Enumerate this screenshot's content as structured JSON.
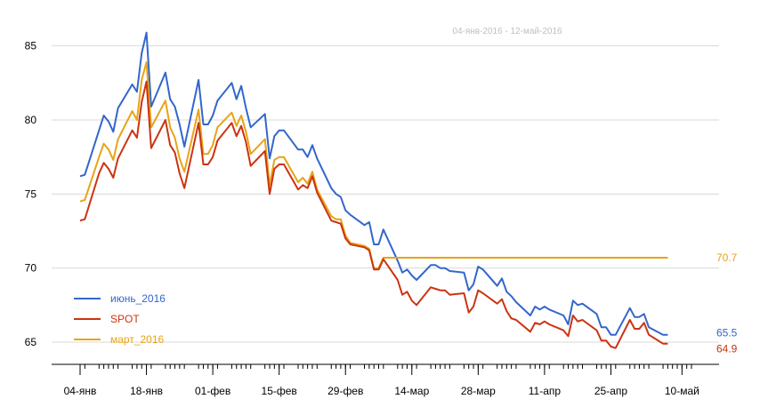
{
  "chart_data": {
    "type": "line",
    "subtitle": "04-янв-2016 - 12-май-2016",
    "ylim": [
      63.5,
      87.5
    ],
    "y_ticks": [
      65,
      70,
      75,
      80,
      85
    ],
    "grid": "horizontal",
    "legend_position": "bottom-left",
    "x_ticks": [
      {
        "label": "04-янв",
        "day": 0
      },
      {
        "label": "18-янв",
        "day": 14
      },
      {
        "label": "01-фев",
        "day": 28
      },
      {
        "label": "15-фев",
        "day": 42
      },
      {
        "label": "29-фев",
        "day": 56
      },
      {
        "label": "14-мар",
        "day": 70
      },
      {
        "label": "28-мар",
        "day": 84
      },
      {
        "label": "11-апр",
        "day": 98
      },
      {
        "label": "25-апр",
        "day": 112
      },
      {
        "label": "10-май",
        "day": 127
      }
    ],
    "x_days": [
      0,
      1,
      4,
      5,
      6,
      7,
      8,
      11,
      12,
      13,
      14,
      15,
      18,
      19,
      20,
      21,
      22,
      25,
      26,
      27,
      28,
      29,
      32,
      33,
      34,
      35,
      36,
      39,
      40,
      41,
      42,
      43,
      46,
      47,
      48,
      49,
      50,
      53,
      54,
      55,
      56,
      57,
      60,
      61,
      62,
      63,
      64,
      67,
      68,
      69,
      70,
      71,
      74,
      75,
      76,
      77,
      78,
      81,
      82,
      83,
      84,
      85,
      88,
      89,
      90,
      91,
      92,
      95,
      96,
      97,
      98,
      99,
      102,
      103,
      104,
      105,
      106,
      109,
      110,
      111,
      112,
      113,
      116,
      117,
      118,
      119,
      120,
      123,
      124,
      125,
      126,
      127,
      128,
      129
    ],
    "series": [
      {
        "name": "июнь_2016",
        "color": "#3366cc",
        "end_label": "65.5",
        "values": [
          76.2,
          76.3,
          79.3,
          80.3,
          79.9,
          79.2,
          80.8,
          82.4,
          81.9,
          84.5,
          85.9,
          80.9,
          83.2,
          81.4,
          80.9,
          79.7,
          78.2,
          82.7,
          79.7,
          79.7,
          80.3,
          81.3,
          82.5,
          81.4,
          82.3,
          80.8,
          79.5,
          80.4,
          77.4,
          78.9,
          79.3,
          79.3,
          78.0,
          78.0,
          77.5,
          78.3,
          77.4,
          75.4,
          75.0,
          74.8,
          73.9,
          73.6,
          72.9,
          73.1,
          71.6,
          71.6,
          72.6,
          70.5,
          69.7,
          69.9,
          69.5,
          69.2,
          70.2,
          70.2,
          70.0,
          70.0,
          69.8,
          69.7,
          68.5,
          68.9,
          70.1,
          69.9,
          68.8,
          69.3,
          68.4,
          68.1,
          67.7,
          66.8,
          67.4,
          67.2,
          67.4,
          67.2,
          66.8,
          66.2,
          67.8,
          67.5,
          67.6,
          66.9,
          66.0,
          66.0,
          65.5,
          65.5,
          67.3,
          66.7,
          66.7,
          66.9,
          66.0,
          65.5,
          65.5
        ]
      },
      {
        "name": "SPOT",
        "color": "#cc3311",
        "end_label": "64.9",
        "values": [
          73.2,
          73.3,
          76.4,
          77.1,
          76.7,
          76.1,
          77.4,
          79.3,
          78.8,
          81.2,
          82.6,
          78.1,
          80.0,
          78.3,
          77.8,
          76.4,
          75.4,
          79.8,
          77.0,
          77.0,
          77.5,
          78.6,
          79.8,
          78.9,
          79.6,
          78.5,
          76.9,
          77.9,
          75.0,
          76.7,
          77.0,
          77.0,
          75.3,
          75.6,
          75.4,
          76.2,
          75.1,
          73.2,
          73.1,
          73.0,
          72.0,
          71.6,
          71.4,
          71.2,
          69.9,
          69.9,
          70.6,
          69.2,
          68.2,
          68.4,
          67.8,
          67.5,
          68.7,
          68.6,
          68.5,
          68.5,
          68.2,
          68.3,
          67.0,
          67.4,
          68.5,
          68.3,
          67.6,
          67.9,
          67.1,
          66.6,
          66.5,
          65.7,
          66.3,
          66.2,
          66.4,
          66.2,
          65.8,
          65.4,
          66.8,
          66.4,
          66.5,
          65.8,
          65.1,
          65.1,
          64.7,
          64.6,
          66.5,
          65.9,
          65.9,
          66.3,
          65.5,
          64.9,
          64.9
        ]
      },
      {
        "name": "март_2016",
        "color": "#e8a317",
        "end_label": "70.7",
        "values": [
          74.5,
          74.6,
          77.5,
          78.4,
          78.0,
          77.3,
          78.7,
          80.6,
          80.0,
          82.7,
          83.9,
          79.5,
          81.3,
          79.5,
          78.8,
          77.4,
          76.5,
          80.7,
          77.7,
          77.7,
          78.3,
          79.5,
          80.5,
          79.6,
          80.3,
          79.2,
          77.7,
          78.7,
          75.6,
          77.3,
          77.5,
          77.5,
          75.8,
          76.1,
          75.7,
          76.5,
          75.3,
          73.5,
          73.3,
          73.3,
          72.2,
          71.7,
          71.5,
          71.3,
          70.0,
          70.0,
          70.7,
          70.7,
          70.7,
          70.7,
          70.7,
          70.7,
          70.7,
          70.7,
          70.7,
          70.7,
          70.7,
          70.7,
          70.7,
          70.7,
          70.7,
          70.7,
          70.7,
          70.7,
          70.7,
          70.7,
          70.7,
          70.7,
          70.7,
          70.7,
          70.7,
          70.7,
          70.7,
          70.7,
          70.7,
          70.7,
          70.7,
          70.7,
          70.7,
          70.7,
          70.7,
          70.7,
          70.7,
          70.7,
          70.7,
          70.7,
          70.7,
          70.7,
          70.7
        ]
      }
    ]
  }
}
